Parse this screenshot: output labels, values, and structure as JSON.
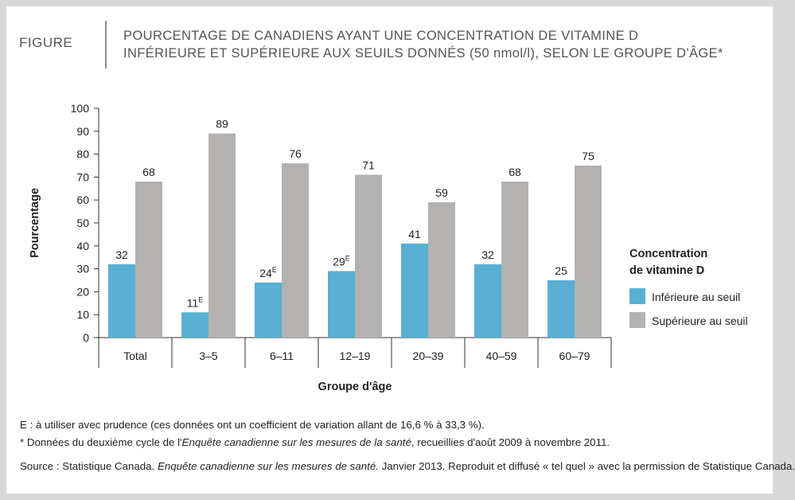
{
  "header": {
    "label": "FIGURE",
    "title_line1": "POURCENTAGE DE CANADIENS AYANT UNE CONCENTRATION DE VITAMINE  D",
    "title_line2": "INFÉRIEURE ET SUPÉRIEURE AUX SEUILS DONNÉS (50 nmol/l), SELON LE GROUPE D'ÂGE*"
  },
  "chart_data": {
    "type": "bar",
    "categories": [
      "Total",
      "3–5",
      "6–11",
      "12–19",
      "20–39",
      "40–59",
      "60–79"
    ],
    "series": [
      {
        "name": "Inférieure au seuil",
        "values": [
          32,
          11,
          24,
          29,
          41,
          32,
          25
        ],
        "flags": [
          "",
          "E",
          "E",
          "E",
          "",
          "",
          ""
        ],
        "color": "#5aafd2"
      },
      {
        "name": "Supérieure au seuil",
        "values": [
          68,
          89,
          76,
          71,
          59,
          68,
          75
        ],
        "flags": [
          "",
          "",
          "",
          "",
          "",
          "",
          ""
        ],
        "color": "#b4b2b0"
      }
    ],
    "ylabel": "Pourcentage",
    "xlabel": "Groupe d'âge",
    "ylim": [
      0,
      100
    ],
    "yticks": [
      0,
      10,
      20,
      30,
      40,
      50,
      60,
      70,
      80,
      90,
      100
    ],
    "legend_title_line1": "Concentration",
    "legend_title_line2": "de vitamine D",
    "legend_position": "right"
  },
  "footnotes": {
    "note_e": "E : à utiliser avec prudence (ces données ont un coefficient de variation allant de 16,6 % à 33,3 %).",
    "note_star_prefix": "* Données du deuxième cycle de l'",
    "note_star_title": "Enquête canadienne sur les mesures de la santé",
    "note_star_suffix": ", recueillies d'août 2009 à novembre 2011.",
    "source_prefix": "Source : Statistique Canada. ",
    "source_title": "Enquête canadienne sur les mesures de santé.",
    "source_suffix": " Janvier 2013. Reproduit et diffusé « tel quel » avec la permission de Statistique Canada."
  }
}
